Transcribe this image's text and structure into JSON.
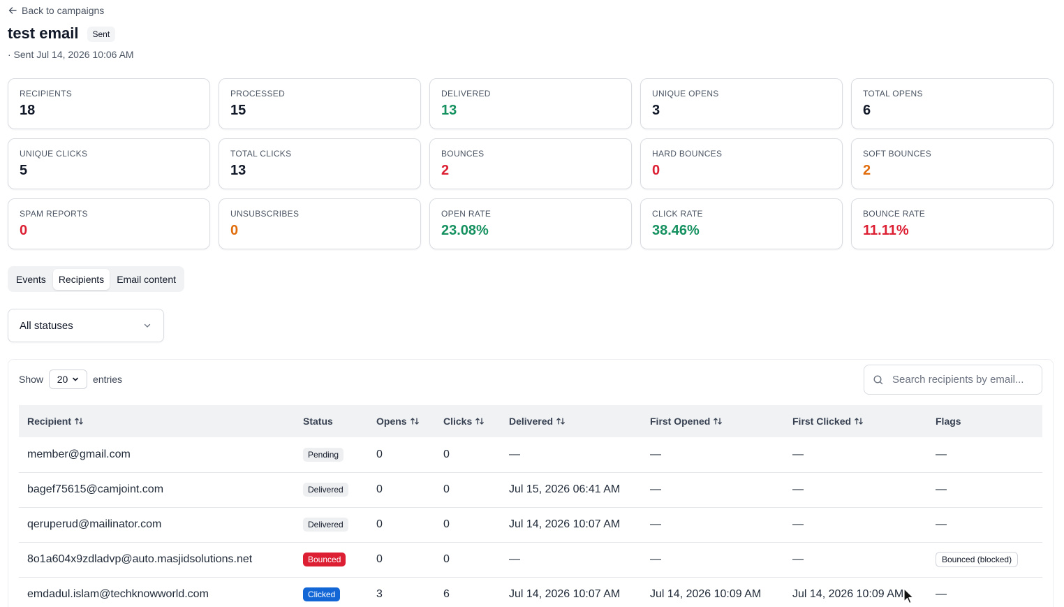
{
  "back_link": "Back to campaigns",
  "title": "test email",
  "status_badge": "Sent",
  "sent_line": "· Sent Jul 14, 2026 10:06 AM",
  "stats": [
    {
      "label": "RECIPIENTS",
      "value": "18",
      "color": "#111827"
    },
    {
      "label": "PROCESSED",
      "value": "15",
      "color": "#111827"
    },
    {
      "label": "DELIVERED",
      "value": "13",
      "color": "#15905f"
    },
    {
      "label": "UNIQUE OPENS",
      "value": "3",
      "color": "#111827"
    },
    {
      "label": "TOTAL OPENS",
      "value": "6",
      "color": "#111827"
    },
    {
      "label": "UNIQUE CLICKS",
      "value": "5",
      "color": "#111827"
    },
    {
      "label": "TOTAL CLICKS",
      "value": "13",
      "color": "#111827"
    },
    {
      "label": "BOUNCES",
      "value": "2",
      "color": "#dc1f33"
    },
    {
      "label": "HARD BOUNCES",
      "value": "0",
      "color": "#dc1f33"
    },
    {
      "label": "SOFT BOUNCES",
      "value": "2",
      "color": "#e06c0c"
    },
    {
      "label": "SPAM REPORTS",
      "value": "0",
      "color": "#dc1f33"
    },
    {
      "label": "UNSUBSCRIBES",
      "value": "0",
      "color": "#e06c0c"
    },
    {
      "label": "OPEN RATE",
      "value": "23.08%",
      "color": "#15905f"
    },
    {
      "label": "CLICK RATE",
      "value": "38.46%",
      "color": "#15905f"
    },
    {
      "label": "BOUNCE RATE",
      "value": "11.11%",
      "color": "#dc1f33"
    }
  ],
  "tabs": [
    {
      "label": "Events",
      "active": false
    },
    {
      "label": "Recipients",
      "active": true
    },
    {
      "label": "Email content",
      "active": false
    }
  ],
  "status_filter": {
    "value": "All statuses"
  },
  "table_controls": {
    "show_label": "Show",
    "page_size": "20",
    "entries_label": "entries",
    "search_placeholder": "Search recipients by email..."
  },
  "columns": [
    "Recipient",
    "Status",
    "Opens",
    "Clicks",
    "Delivered",
    "First Opened",
    "First Clicked",
    "Flags"
  ],
  "rows": [
    {
      "recipient": "member@gmail.com",
      "status": "Pending",
      "opens": "0",
      "clicks": "0",
      "delivered": "—",
      "first_opened": "—",
      "first_clicked": "—",
      "flags": "—"
    },
    {
      "recipient": "bagef75615@camjoint.com",
      "status": "Delivered",
      "opens": "0",
      "clicks": "0",
      "delivered": "Jul 15, 2026 06:41 AM",
      "first_opened": "—",
      "first_clicked": "—",
      "flags": "—"
    },
    {
      "recipient": "qeruperud@mailinator.com",
      "status": "Delivered",
      "opens": "0",
      "clicks": "0",
      "delivered": "Jul 14, 2026 10:07 AM",
      "first_opened": "—",
      "first_clicked": "—",
      "flags": "—"
    },
    {
      "recipient": "8o1a604x9zdladvp@auto.masjidsolutions.net",
      "status": "Bounced",
      "opens": "0",
      "clicks": "0",
      "delivered": "—",
      "first_opened": "—",
      "first_clicked": "—",
      "flags": "Bounced (blocked)"
    },
    {
      "recipient": "emdadul.islam@techknowworld.com",
      "status": "Clicked",
      "opens": "3",
      "clicks": "6",
      "delivered": "Jul 14, 2026 10:07 AM",
      "first_opened": "Jul 14, 2026 10:09 AM",
      "first_clicked": "Jul 14, 2026 10:09 AM",
      "flags": "—"
    }
  ],
  "colors": {
    "green": "#15905f",
    "red": "#dc1f33",
    "orange": "#e06c0c",
    "clicked_badge": "#1266d6"
  }
}
